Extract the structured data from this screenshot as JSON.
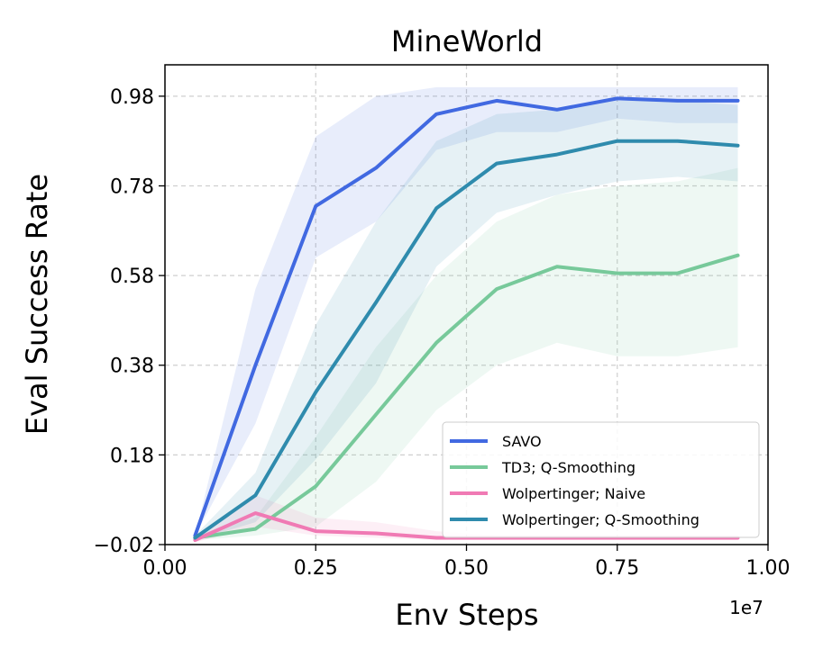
{
  "chart_data": {
    "type": "line",
    "title": "MineWorld",
    "xlabel": "Env Steps",
    "ylabel": "Eval Success Rate",
    "x_offset_label": "1e7",
    "xlim": [
      0.0,
      1.0
    ],
    "ylim": [
      -0.02,
      1.05
    ],
    "xticks": [
      0.0,
      0.25,
      0.5,
      0.75,
      1.0
    ],
    "xtick_labels": [
      "0.00",
      "0.25",
      "0.50",
      "0.75",
      "1.00"
    ],
    "yticks": [
      -0.02,
      0.18,
      0.38,
      0.58,
      0.78,
      0.98
    ],
    "ytick_labels": [
      "−0.02",
      "0.18",
      "0.38",
      "0.58",
      "0.78",
      "0.98"
    ],
    "grid": true,
    "legend_position": "lower-right",
    "x": [
      0.05,
      0.15,
      0.25,
      0.35,
      0.45,
      0.55,
      0.65,
      0.75,
      0.85,
      0.95
    ],
    "series": [
      {
        "name": "SAVO",
        "color": "#4169e1",
        "values": [
          0.0,
          0.38,
          0.735,
          0.82,
          0.94,
          0.97,
          0.95,
          0.975,
          0.97,
          0.97
        ],
        "lower": [
          0.0,
          0.25,
          0.62,
          0.7,
          0.86,
          0.9,
          0.9,
          0.93,
          0.92,
          0.92
        ],
        "upper": [
          0.0,
          0.55,
          0.89,
          0.98,
          1.0,
          1.0,
          1.0,
          1.0,
          1.0,
          1.0
        ]
      },
      {
        "name": "TD3; Q-Smoothing",
        "color": "#77c99a",
        "values": [
          -0.005,
          0.015,
          0.11,
          0.27,
          0.43,
          0.55,
          0.6,
          0.585,
          0.585,
          0.625
        ],
        "lower": [
          -0.01,
          0.0,
          0.02,
          0.12,
          0.28,
          0.38,
          0.43,
          0.4,
          0.4,
          0.42
        ],
        "upper": [
          0.0,
          0.04,
          0.22,
          0.42,
          0.58,
          0.7,
          0.76,
          0.78,
          0.79,
          0.82
        ]
      },
      {
        "name": "Wolpertinger; Naive",
        "color": "#f07ab4",
        "values": [
          -0.01,
          0.05,
          0.01,
          0.005,
          -0.005,
          -0.005,
          -0.005,
          -0.005,
          -0.005,
          -0.005
        ],
        "lower": [
          -0.015,
          0.02,
          0.0,
          -0.005,
          -0.01,
          -0.01,
          -0.01,
          -0.01,
          -0.01,
          -0.01
        ],
        "upper": [
          0.0,
          0.09,
          0.04,
          0.03,
          0.01,
          0.0,
          0.0,
          0.0,
          0.0,
          0.0
        ]
      },
      {
        "name": "Wolpertinger; Q-Smoothing",
        "color": "#2f8bad",
        "values": [
          -0.005,
          0.09,
          0.32,
          0.52,
          0.73,
          0.83,
          0.85,
          0.88,
          0.88,
          0.87
        ],
        "lower": [
          -0.01,
          0.03,
          0.17,
          0.34,
          0.6,
          0.72,
          0.76,
          0.79,
          0.8,
          0.79
        ],
        "upper": [
          0.0,
          0.14,
          0.47,
          0.7,
          0.88,
          0.94,
          0.95,
          0.97,
          0.97,
          0.96
        ]
      }
    ]
  }
}
